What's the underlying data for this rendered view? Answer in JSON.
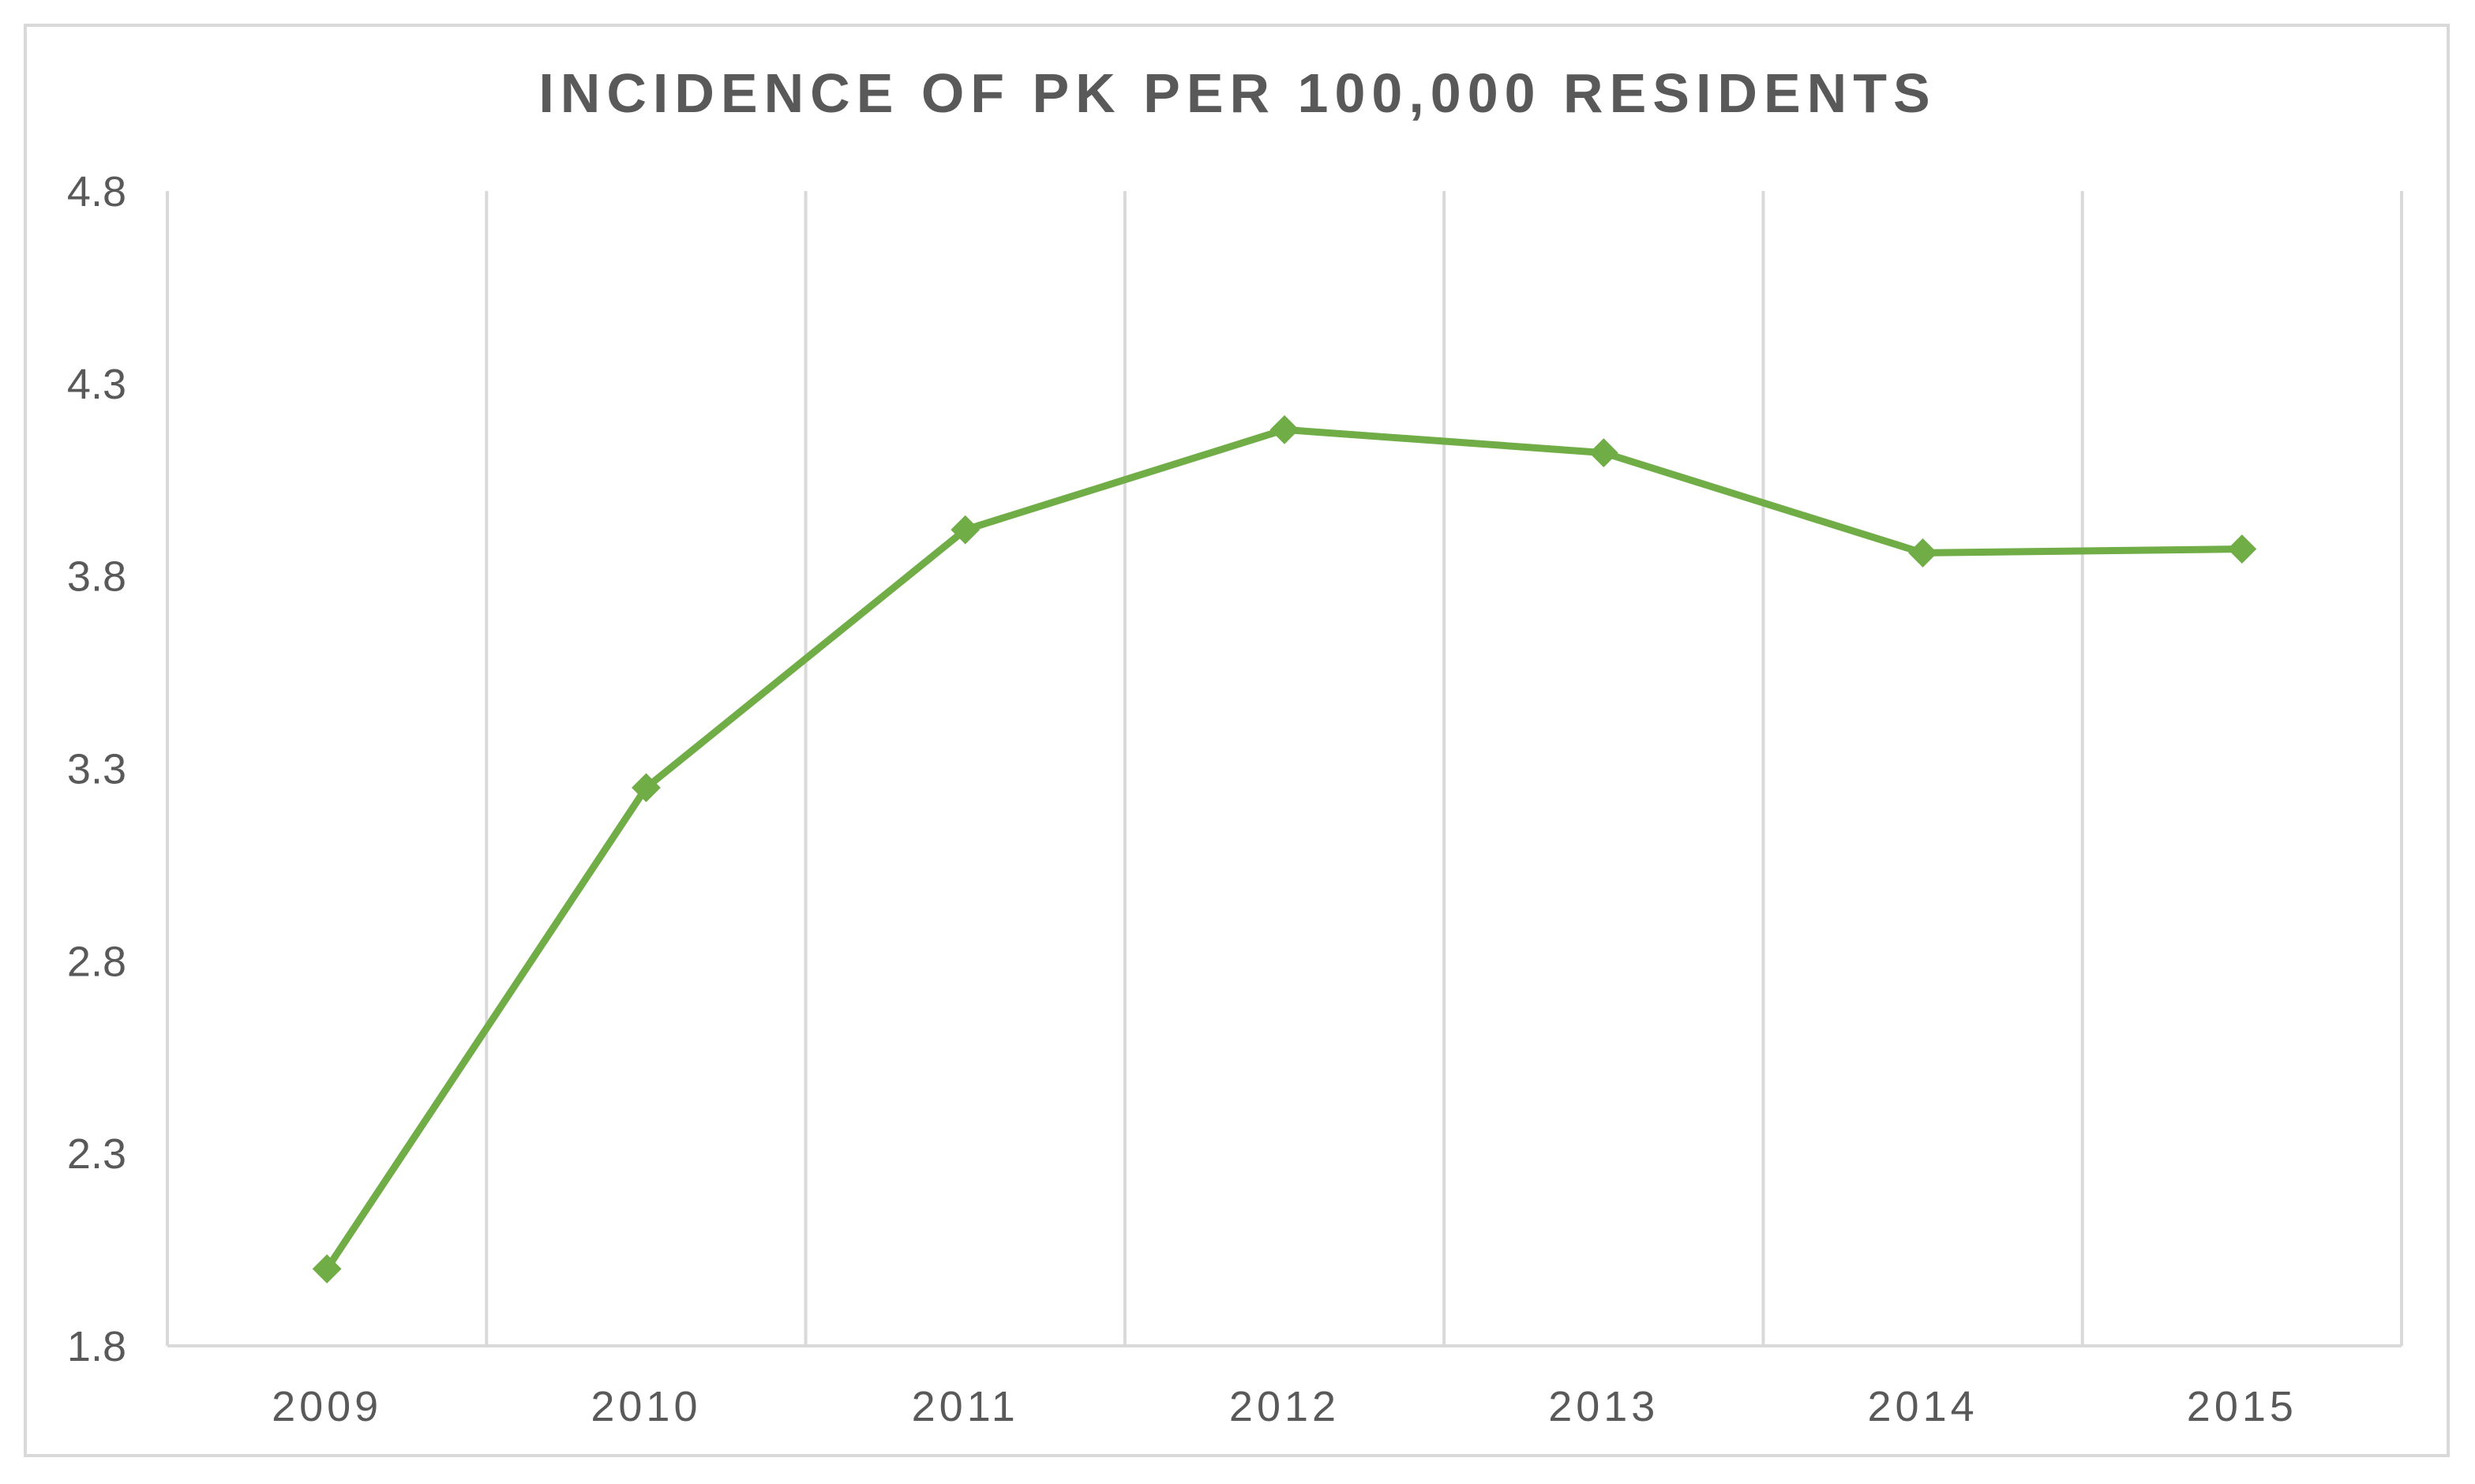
{
  "chart_data": {
    "type": "line",
    "title": "INCIDENCE OF PK PER 100,000 RESIDENTS",
    "xlabel": "",
    "ylabel": "",
    "categories": [
      "2009",
      "2010",
      "2011",
      "2012",
      "2013",
      "2014",
      "2015"
    ],
    "series": [
      {
        "values": [
          2.0,
          3.25,
          3.92,
          4.18,
          4.12,
          3.86,
          3.87
        ],
        "color": "#70ad47",
        "marker": "diamond"
      }
    ],
    "ylim": [
      1.8,
      4.8
    ],
    "yticks": [
      "1.8",
      "2.3",
      "2.8",
      "3.3",
      "3.8",
      "4.3",
      "4.8"
    ],
    "grid": "vertical",
    "legend": "none"
  }
}
